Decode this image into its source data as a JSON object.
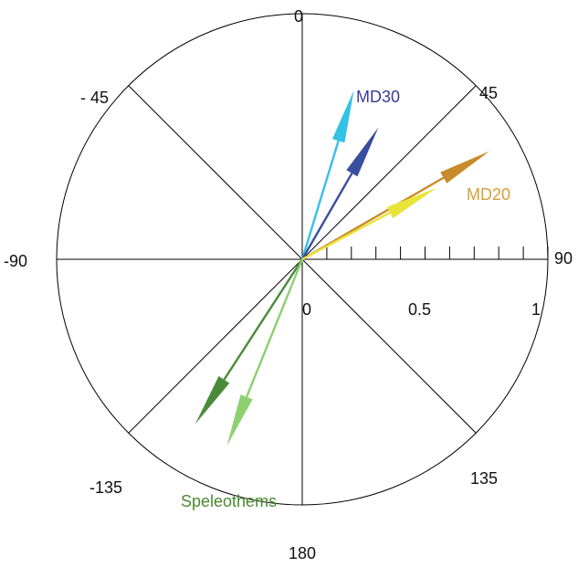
{
  "angle_labels": {
    "n0": "0",
    "n45": "45",
    "n90": "90",
    "n135": "135",
    "n180": "180",
    "nm135": "-135",
    "nm90": "-90",
    "nm45": "- 45"
  },
  "scale_labels": {
    "s0": "0",
    "s05": "0.5",
    "s1": "1"
  },
  "series_labels": {
    "md30": "MD30",
    "md20": "MD20",
    "speleothems": "Speleothems"
  },
  "vectors": [
    {
      "group": "md30",
      "angle_deg": 17,
      "length": 0.72,
      "color": "#33c1e6"
    },
    {
      "group": "md30",
      "angle_deg": 30,
      "length": 0.62,
      "color": "#3a4ea0"
    },
    {
      "group": "md20",
      "angle_deg": 60,
      "length": 0.88,
      "color": "#c88a2a"
    },
    {
      "group": "md20",
      "angle_deg": 62,
      "length": 0.62,
      "color": "#e8e43a"
    },
    {
      "group": "speleothems",
      "angle_deg": -147,
      "length": 0.8,
      "color": "#4b8a3a"
    },
    {
      "group": "speleothems",
      "angle_deg": -158,
      "length": 0.82,
      "color": "#8ed070"
    }
  ],
  "colors": {
    "md30_label": "#3b3b99",
    "md20_label": "#d6a035",
    "speleothems_label": "#4a8a2f"
  }
}
